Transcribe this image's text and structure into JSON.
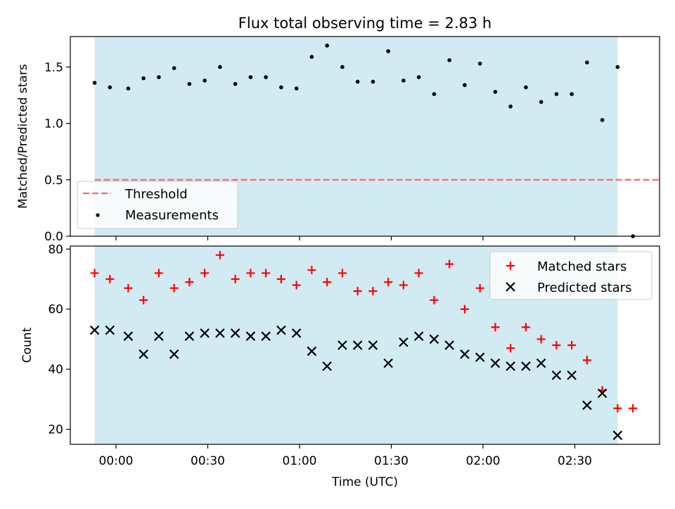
{
  "chart_data": {
    "title": "Flux total observing time = 2.83 h",
    "xlabel": "Time (UTC)",
    "x_ticks": [
      "00:00",
      "00:30",
      "01:00",
      "01:30",
      "02:00",
      "02:30"
    ],
    "colors": {
      "shade": "#add8e6",
      "threshold": "#ff6666",
      "measurements": "#000000",
      "matched": "#ff0000",
      "predicted": "#000000"
    },
    "top_panel": {
      "type": "scatter",
      "ylabel": "Matched/Predicted stars",
      "ylim": [
        0,
        1.77
      ],
      "y_ticks": [
        "0.0",
        "0.5",
        "1.0",
        "1.5"
      ],
      "legend_position": "lower-left",
      "threshold": {
        "name": "Threshold",
        "value": 0.5,
        "x_start": "23:53",
        "x_end": "02:58"
      },
      "measurements": {
        "name": "Measurements",
        "x": [
          "23:53",
          "23:58",
          "00:04",
          "00:09",
          "00:14",
          "00:19",
          "00:24",
          "00:29",
          "00:34",
          "00:39",
          "00:44",
          "00:49",
          "00:54",
          "00:59",
          "01:04",
          "01:09",
          "01:14",
          "01:19",
          "01:24",
          "01:29",
          "01:34",
          "01:39",
          "01:44",
          "01:49",
          "01:54",
          "01:59",
          "02:04",
          "02:09",
          "02:14",
          "02:19",
          "02:24",
          "02:29",
          "02:34",
          "02:39",
          "02:44",
          "02:49"
        ],
        "y": [
          1.36,
          1.32,
          1.31,
          1.4,
          1.41,
          1.49,
          1.35,
          1.38,
          1.5,
          1.35,
          1.41,
          1.41,
          1.32,
          1.31,
          1.59,
          1.69,
          1.5,
          1.37,
          1.37,
          1.64,
          1.38,
          1.41,
          1.26,
          1.56,
          1.34,
          1.53,
          1.28,
          1.15,
          1.32,
          1.19,
          1.26,
          1.26,
          1.54,
          1.03,
          1.5,
          0.0
        ]
      }
    },
    "bottom_panel": {
      "type": "scatter",
      "ylabel": "Count",
      "ylim": [
        15,
        81
      ],
      "y_ticks": [
        "20",
        "40",
        "60",
        "80"
      ],
      "legend_position": "upper-right",
      "series": [
        {
          "name": "Matched stars",
          "marker": "plus",
          "x": [
            "23:53",
            "23:58",
            "00:04",
            "00:09",
            "00:14",
            "00:19",
            "00:24",
            "00:29",
            "00:34",
            "00:39",
            "00:44",
            "00:49",
            "00:54",
            "00:59",
            "01:04",
            "01:09",
            "01:14",
            "01:19",
            "01:24",
            "01:29",
            "01:34",
            "01:39",
            "01:44",
            "01:49",
            "01:54",
            "01:59",
            "02:04",
            "02:09",
            "02:14",
            "02:19",
            "02:24",
            "02:29",
            "02:34",
            "02:39",
            "02:44",
            "02:49"
          ],
          "y": [
            72,
            70,
            67,
            63,
            72,
            67,
            69,
            72,
            78,
            70,
            72,
            72,
            70,
            68,
            73,
            69,
            72,
            66,
            66,
            69,
            68,
            72,
            63,
            75,
            60,
            67,
            54,
            47,
            54,
            50,
            48,
            48,
            43,
            33,
            27,
            27
          ]
        },
        {
          "name": "Predicted stars",
          "marker": "x",
          "x": [
            "23:53",
            "23:58",
            "00:04",
            "00:09",
            "00:14",
            "00:19",
            "00:24",
            "00:29",
            "00:34",
            "00:39",
            "00:44",
            "00:49",
            "00:54",
            "00:59",
            "01:04",
            "01:09",
            "01:14",
            "01:19",
            "01:24",
            "01:29",
            "01:34",
            "01:39",
            "01:44",
            "01:49",
            "01:54",
            "01:59",
            "02:04",
            "02:09",
            "02:14",
            "02:19",
            "02:24",
            "02:29",
            "02:34",
            "02:39",
            "02:44"
          ],
          "y": [
            53,
            53,
            51,
            45,
            51,
            45,
            51,
            52,
            52,
            52,
            51,
            51,
            53,
            52,
            46,
            41,
            48,
            48,
            48,
            42,
            49,
            51,
            50,
            48,
            45,
            44,
            42,
            41,
            41,
            42,
            38,
            38,
            28,
            32,
            18
          ]
        }
      ]
    }
  }
}
